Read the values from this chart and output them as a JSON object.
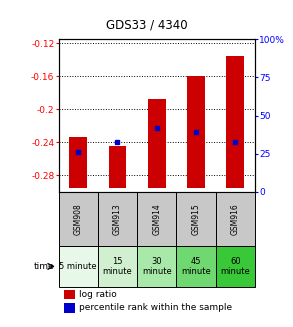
{
  "title": "GDS33 / 4340",
  "samples": [
    "GSM908",
    "GSM913",
    "GSM914",
    "GSM915",
    "GSM916"
  ],
  "bar_tops": [
    -0.233,
    -0.245,
    -0.188,
    -0.16,
    -0.135
  ],
  "bar_bottom": -0.295,
  "blue_values": [
    -0.252,
    -0.24,
    -0.222,
    -0.228,
    -0.24
  ],
  "ylim_left": [
    -0.3,
    -0.115
  ],
  "ylim_right": [
    0,
    100
  ],
  "yticks_left": [
    -0.28,
    -0.24,
    -0.2,
    -0.16,
    -0.12
  ],
  "yticks_right": [
    0,
    25,
    50,
    75,
    100
  ],
  "time_labels": [
    "5 minute",
    "15\nminute",
    "30\nminute",
    "45\nminute",
    "60\nminute"
  ],
  "time_colors": [
    "#e8f8e8",
    "#d0f0d0",
    "#a8e8a8",
    "#70d870",
    "#38c838"
  ],
  "bar_color": "#cc0000",
  "blue_color": "#0000cc",
  "plot_bg": "#ffffff",
  "label_bg": "#c8c8c8",
  "fig_width": 2.93,
  "fig_height": 3.27,
  "dpi": 100
}
